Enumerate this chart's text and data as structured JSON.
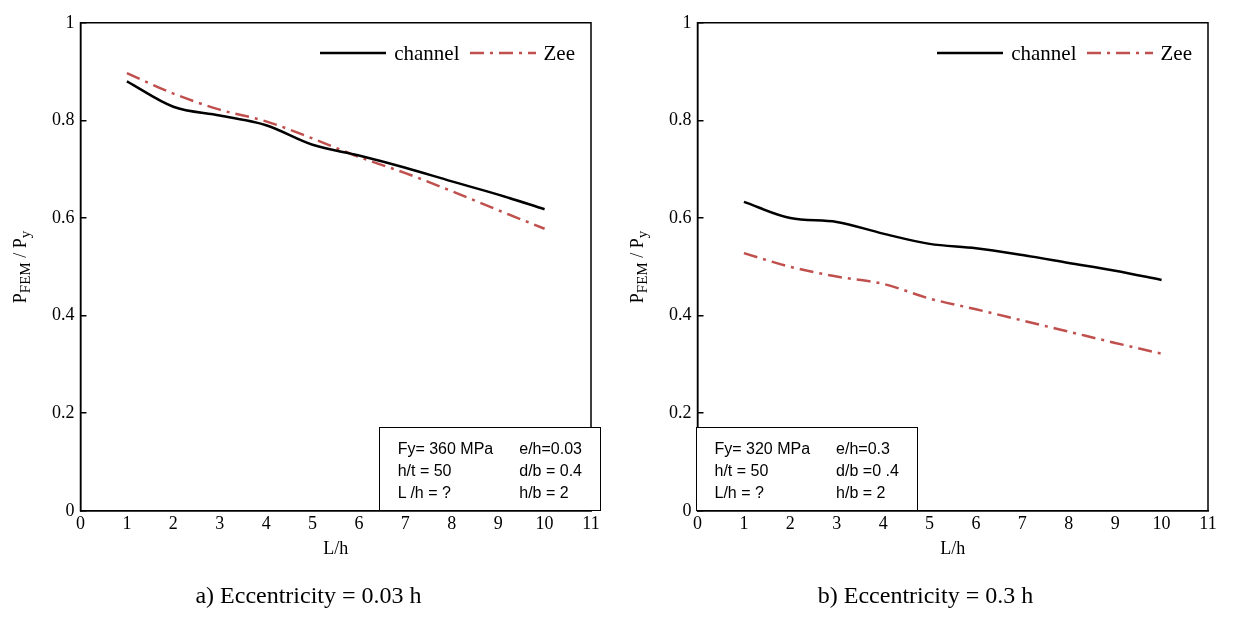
{
  "chart_data": [
    {
      "type": "line",
      "title": "a) Eccentricity = 0.03 h",
      "xlabel": "L/h",
      "ylabel": "P$_{FEM}$ / P$_{y}$",
      "x": [
        1,
        2,
        3,
        4,
        5,
        6,
        7,
        8,
        9,
        10
      ],
      "series": [
        {
          "name": "channel",
          "color": "#000000",
          "line_style": "solid",
          "values": [
            0.88,
            0.828,
            0.81,
            0.79,
            0.75,
            0.728,
            0.703,
            0.675,
            0.648,
            0.618
          ]
        },
        {
          "name": "Zee",
          "color": "#c0504d",
          "line_style": "dashed",
          "values": [
            0.897,
            0.855,
            0.822,
            0.798,
            0.763,
            0.725,
            0.692,
            0.655,
            0.616,
            0.578
          ]
        }
      ],
      "xlim": [
        0,
        11
      ],
      "xticks": [
        0,
        1,
        2,
        3,
        4,
        5,
        6,
        7,
        8,
        9,
        10,
        11
      ],
      "ylim": [
        0,
        1
      ],
      "yticks": [
        0,
        0.2,
        0.4,
        0.6,
        0.8,
        1
      ],
      "legend": "top right",
      "marker": "none",
      "annotations": [
        "Fy= 360 MPa",
        "e/h=0.03",
        "h/t = 50",
        "d/b = 0.4",
        "L /h = ?",
        "h/b = 2"
      ]
    },
    {
      "type": "line",
      "title": "b) Eccentricity = 0.3 h",
      "xlabel": "L/h",
      "ylabel": "P$_{FEM}$ / P$_{y}$",
      "x": [
        1,
        2,
        3,
        4,
        5,
        6,
        7,
        8,
        9,
        10
      ],
      "series": [
        {
          "name": "channel",
          "color": "#000000",
          "line_style": "solid",
          "values": [
            0.633,
            0.6,
            0.592,
            0.568,
            0.547,
            0.538,
            0.524,
            0.508,
            0.492,
            0.473
          ]
        },
        {
          "name": "Zee",
          "color": "#c0504d",
          "line_style": "dashed",
          "values": [
            0.528,
            0.5,
            0.48,
            0.465,
            0.435,
            0.413,
            0.39,
            0.367,
            0.344,
            0.322
          ]
        }
      ],
      "xlim": [
        0,
        11
      ],
      "xticks": [
        0,
        1,
        2,
        3,
        4,
        5,
        6,
        7,
        8,
        9,
        10,
        11
      ],
      "ylim": [
        0,
        1
      ],
      "yticks": [
        0,
        0.2,
        0.4,
        0.6,
        0.8,
        1
      ],
      "legend": "top right",
      "marker": "none",
      "annotations": [
        "Fy= 320 MPa",
        "e/h=0.3",
        "h/t = 50",
        "d/b =0 .4",
        "L/h = ?",
        "h/b = 2"
      ]
    }
  ]
}
